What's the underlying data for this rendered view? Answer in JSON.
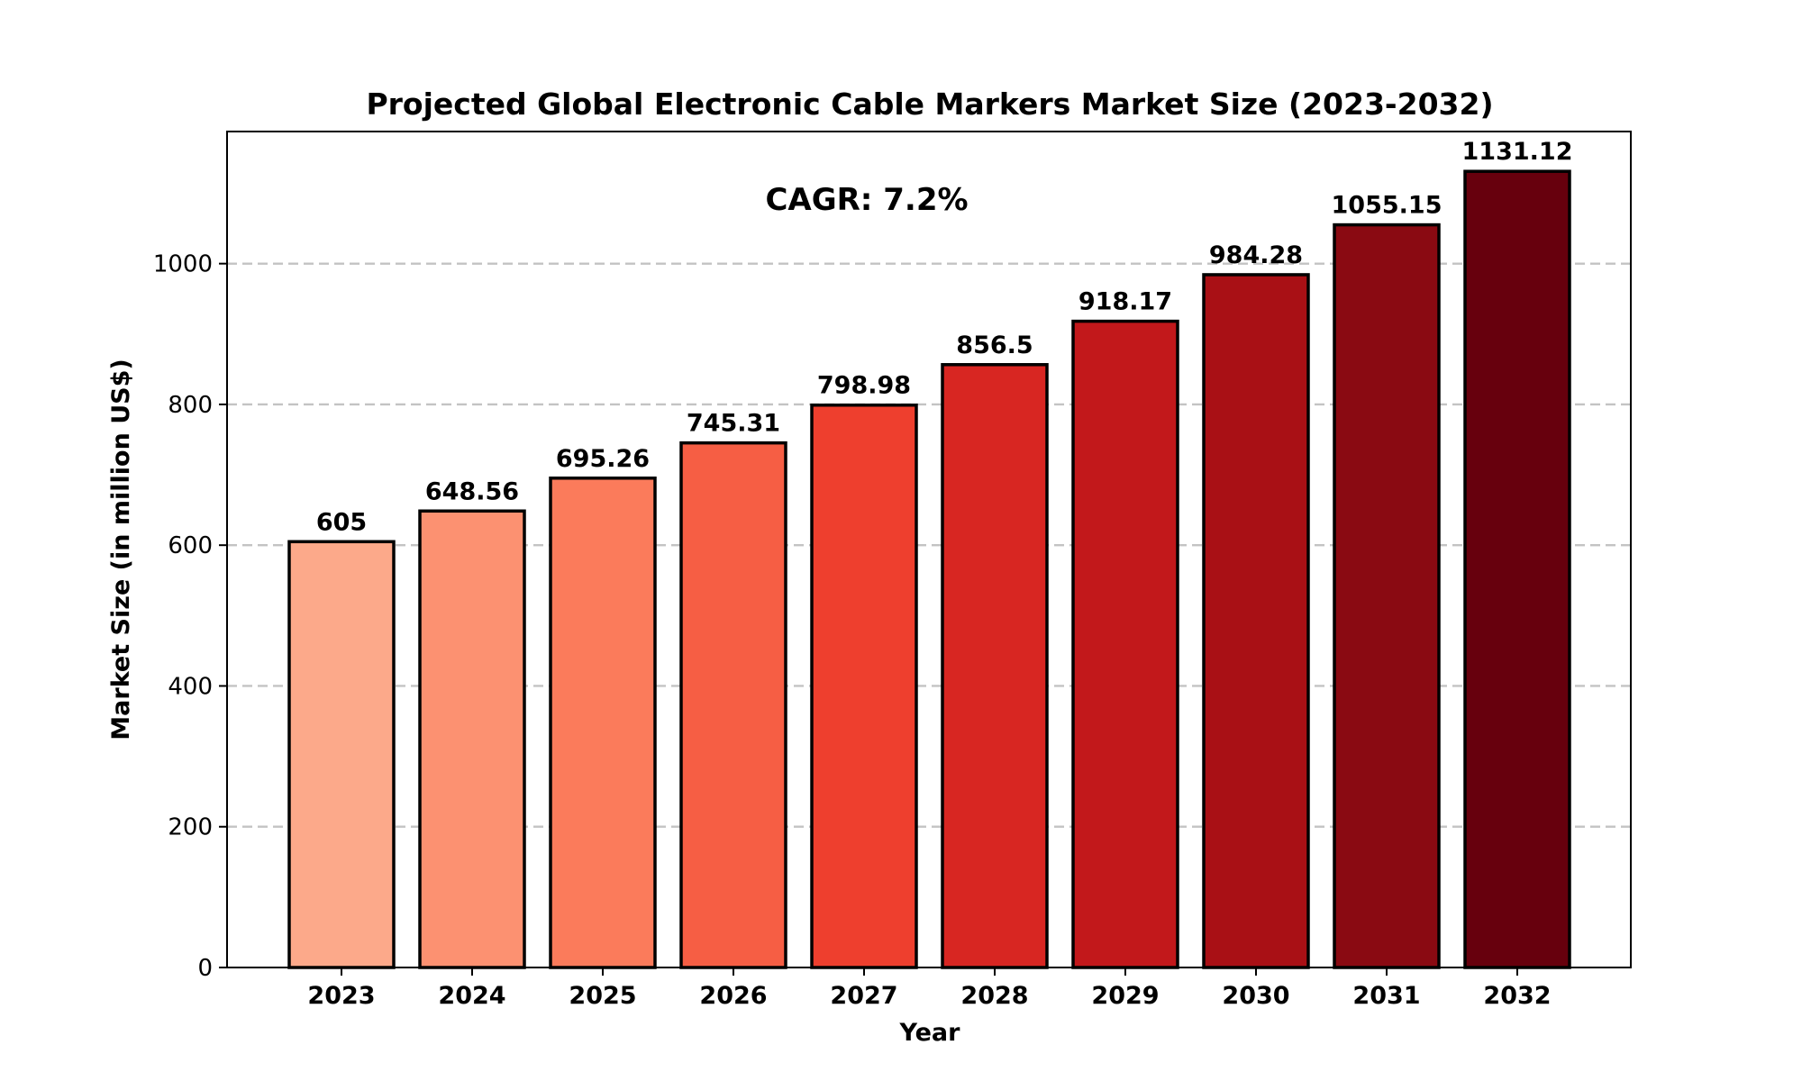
{
  "chart_data": {
    "type": "bar",
    "title": "Projected Global Electronic Cable Markers Market Size (2023-2032)",
    "xlabel": "Year",
    "ylabel": "Market Size (in million US$)",
    "categories": [
      "2023",
      "2024",
      "2025",
      "2026",
      "2027",
      "2028",
      "2029",
      "2030",
      "2031",
      "2032"
    ],
    "values": [
      605,
      648.56,
      695.26,
      745.31,
      798.98,
      856.5,
      918.17,
      984.28,
      1055.15,
      1131.12
    ],
    "data_labels": [
      "605",
      "648.56",
      "695.26",
      "745.31",
      "798.98",
      "856.5",
      "918.17",
      "984.28",
      "1055.15",
      "1131.12"
    ],
    "yticks": [
      0,
      200,
      400,
      600,
      800,
      1000
    ],
    "ylim": [
      0,
      1187.7
    ],
    "grid": "y-axis, dashed",
    "annotation": "CAGR: 7.2%",
    "bar_colors": [
      "#fca98a",
      "#fc9171",
      "#fb7b5b",
      "#f65e44",
      "#ee3f2e",
      "#d82622",
      "#c2181b",
      "#a91015",
      "#8a0a12",
      "#67000d"
    ],
    "bar_edge_color": "#000000",
    "legend": "none"
  }
}
